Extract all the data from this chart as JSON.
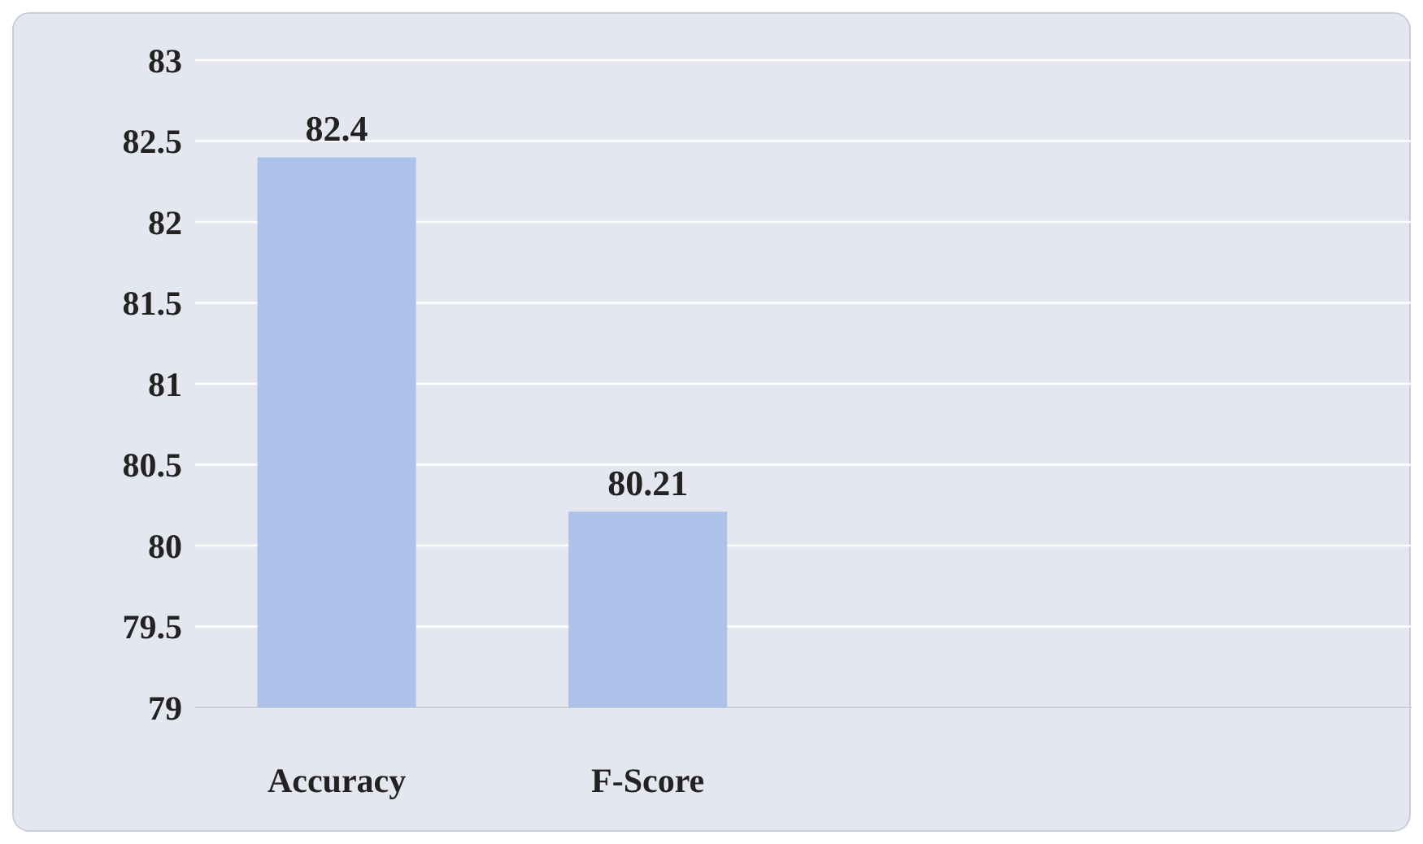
{
  "chart_data": {
    "type": "bar",
    "categories": [
      "Accuracy",
      "F-Score",
      null,
      null
    ],
    "values": [
      82.4,
      80.21,
      null,
      null
    ],
    "color": "#adc2ea",
    "ylim": [
      79,
      83
    ],
    "yticks": [
      79,
      79.5,
      80,
      80.5,
      81,
      81.5,
      82,
      82.5,
      83
    ],
    "grid": "y",
    "data_labels": true
  }
}
